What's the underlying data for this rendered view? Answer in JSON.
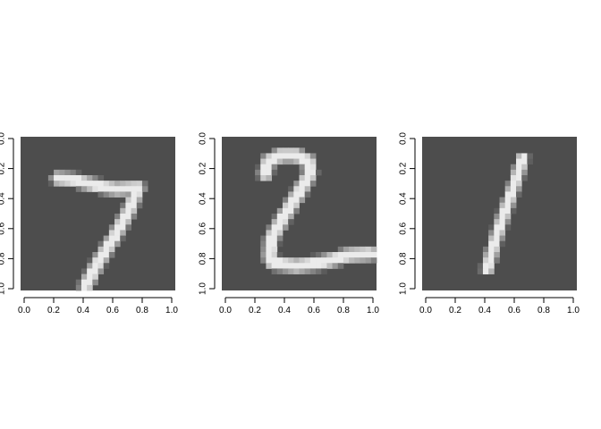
{
  "chart_data": [
    {
      "type": "heatmap",
      "title": "",
      "xlabel": "",
      "ylabel": "",
      "xlim": [
        0,
        1
      ],
      "ylim": [
        0,
        1
      ],
      "y_reversed": true,
      "xticks": [
        "0.0",
        "0.2",
        "0.4",
        "0.6",
        "0.8",
        "1.0"
      ],
      "yticks": [
        "0.0",
        "0.2",
        "0.4",
        "0.6",
        "0.8",
        "1.0"
      ],
      "colors": {
        "background": "#4d4d4d",
        "foreground": "#ebebeb"
      },
      "digit_image": "7"
    },
    {
      "type": "heatmap",
      "title": "",
      "xlabel": "",
      "ylabel": "",
      "xlim": [
        0,
        1
      ],
      "ylim": [
        0,
        1
      ],
      "y_reversed": true,
      "xticks": [
        "0.0",
        "0.2",
        "0.4",
        "0.6",
        "0.8",
        "1.0"
      ],
      "yticks": [
        "0.0",
        "0.2",
        "0.4",
        "0.6",
        "0.8",
        "1.0"
      ],
      "colors": {
        "background": "#4d4d4d",
        "foreground": "#ebebeb"
      },
      "digit_image": "2"
    },
    {
      "type": "heatmap",
      "title": "",
      "xlabel": "",
      "ylabel": "",
      "xlim": [
        0,
        1
      ],
      "ylim": [
        0,
        1
      ],
      "y_reversed": true,
      "xticks": [
        "0.0",
        "0.2",
        "0.4",
        "0.6",
        "0.8",
        "1.0"
      ],
      "yticks": [
        "0.0",
        "0.2",
        "0.4",
        "0.6",
        "0.8",
        "1.0"
      ],
      "colors": {
        "background": "#4d4d4d",
        "foreground": "#ebebeb"
      },
      "digit_image": "1"
    }
  ]
}
